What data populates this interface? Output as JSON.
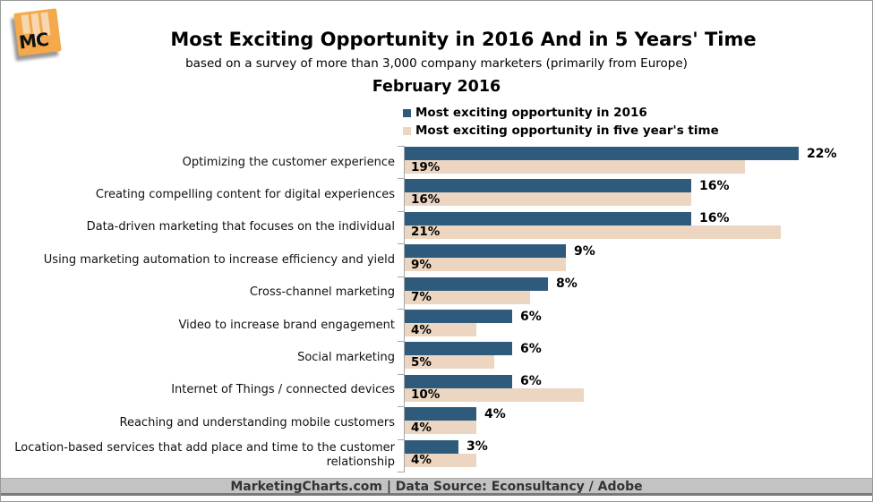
{
  "header": {
    "title": "Most Exciting Opportunity in 2016 And in 5 Years' Time",
    "subtitle": "based on a survey of more than 3,000 company marketers (primarily from Europe)",
    "date": "February 2016"
  },
  "logo": {
    "text": "MC",
    "brand_color": "#f3a94c"
  },
  "chart_data": {
    "type": "bar",
    "orientation": "horizontal",
    "title": "Most Exciting Opportunity in 2016 And in 5 Years' Time",
    "categories": [
      "Optimizing the customer experience",
      "Creating compelling content for digital experiences",
      "Data-driven marketing that focuses on the individual",
      "Using marketing automation to increase efficiency and yield",
      "Cross-channel marketing",
      "Video to increase brand engagement",
      "Social marketing",
      "Internet of Things / connected devices",
      "Reaching and understanding mobile customers",
      "Location-based services that add place and time to the customer relationship"
    ],
    "series": [
      {
        "name": "Most exciting opportunity in 2016",
        "color": "#2e5a7c",
        "values": [
          22,
          16,
          16,
          9,
          8,
          6,
          6,
          6,
          4,
          3
        ]
      },
      {
        "name": "Most exciting opportunity in five year's time",
        "color": "#ecd6c1",
        "values": [
          19,
          16,
          21,
          9,
          7,
          4,
          5,
          10,
          4,
          4
        ]
      }
    ],
    "value_suffix": "%",
    "xlim": [
      0,
      26
    ],
    "grid": false,
    "legend_position": "top-center",
    "axis_color": "#a6a6a6"
  },
  "footer": {
    "text": "MarketingCharts.com | Data Source: Econsultancy / Adobe"
  }
}
